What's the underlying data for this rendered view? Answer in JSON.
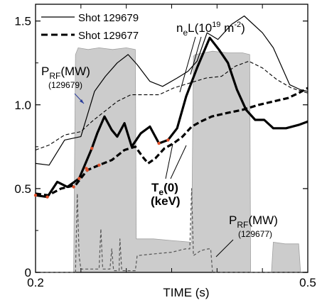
{
  "chart_data": {
    "type": "line",
    "xlabel": "TIME (s)",
    "xlim": [
      0.2,
      0.5
    ],
    "ylim": [
      0,
      1.6
    ],
    "x_ticks": [
      "0.2",
      "0.5"
    ],
    "y_ticks": [
      "0",
      "0.5",
      "1.0",
      "1.5"
    ],
    "legend": {
      "placement": "top-left",
      "entries": [
        "Shot 129679",
        "Shot 129677"
      ]
    },
    "annotations": {
      "ne": {
        "prefix": "n",
        "sub": "e",
        "mid": "L(10",
        "sup1": "19",
        "tail": " m",
        "sup2": "-2",
        "close": ")"
      },
      "prf1": {
        "main": "P",
        "sub": "RF",
        "tail": "(MW)",
        "shot": "(129679)"
      },
      "te": {
        "main": "T",
        "sub": "e",
        "tail": "(0)",
        "unit": "(keV)"
      },
      "prf2": {
        "main": "P",
        "sub": "RF",
        "tail": "(MW)",
        "shot": "(129677)"
      }
    },
    "series": [
      {
        "label": "ne_L_129679",
        "style": "thin-solid",
        "points": [
          [
            0.2,
            0.65
          ],
          [
            0.215,
            0.64
          ],
          [
            0.232,
            0.79
          ],
          [
            0.25,
            0.81
          ],
          [
            0.265,
            1.08
          ],
          [
            0.277,
            1.17
          ],
          [
            0.29,
            1.25
          ],
          [
            0.302,
            1.3
          ],
          [
            0.312,
            1.24
          ],
          [
            0.326,
            1.14
          ],
          [
            0.34,
            1.11
          ],
          [
            0.356,
            1.16
          ],
          [
            0.368,
            1.2
          ],
          [
            0.378,
            1.26
          ],
          [
            0.389,
            1.43
          ],
          [
            0.401,
            1.39
          ],
          [
            0.416,
            1.48
          ],
          [
            0.43,
            1.53
          ],
          [
            0.45,
            1.43
          ],
          [
            0.462,
            1.34
          ],
          [
            0.48,
            1.12
          ],
          [
            0.492,
            1.09
          ],
          [
            0.5,
            1.08
          ]
        ]
      },
      {
        "label": "ne_L_129677",
        "style": "thin-dashed",
        "points": [
          [
            0.2,
            0.73
          ],
          [
            0.215,
            0.76
          ],
          [
            0.232,
            0.82
          ],
          [
            0.25,
            0.84
          ],
          [
            0.262,
            0.9
          ],
          [
            0.276,
            0.96
          ],
          [
            0.29,
            1.02
          ],
          [
            0.305,
            1.06
          ],
          [
            0.32,
            1.06
          ],
          [
            0.336,
            1.06
          ],
          [
            0.352,
            1.1
          ],
          [
            0.37,
            1.13
          ],
          [
            0.388,
            1.16
          ],
          [
            0.405,
            1.17
          ],
          [
            0.42,
            1.23
          ],
          [
            0.435,
            1.26
          ],
          [
            0.45,
            1.22
          ],
          [
            0.466,
            1.15
          ],
          [
            0.482,
            1.1
          ],
          [
            0.5,
            1.07
          ]
        ]
      },
      {
        "label": "Te0_129679",
        "style": "thick-solid",
        "points": [
          [
            0.2,
            0.46
          ],
          [
            0.213,
            0.45
          ],
          [
            0.224,
            0.54
          ],
          [
            0.235,
            0.51
          ],
          [
            0.248,
            0.56
          ],
          [
            0.262,
            0.74
          ],
          [
            0.268,
            0.83
          ],
          [
            0.276,
            0.93
          ],
          [
            0.284,
            0.85
          ],
          [
            0.29,
            0.81
          ],
          [
            0.298,
            0.89
          ],
          [
            0.306,
            0.75
          ],
          [
            0.316,
            0.83
          ],
          [
            0.326,
            0.87
          ],
          [
            0.336,
            0.77
          ],
          [
            0.346,
            0.79
          ],
          [
            0.356,
            0.86
          ],
          [
            0.366,
            1.05
          ],
          [
            0.378,
            1.22
          ],
          [
            0.392,
            1.4
          ],
          [
            0.402,
            1.33
          ],
          [
            0.412,
            1.25
          ],
          [
            0.422,
            1.09
          ],
          [
            0.432,
            0.97
          ],
          [
            0.442,
            0.91
          ],
          [
            0.452,
            0.91
          ],
          [
            0.462,
            0.86
          ],
          [
            0.476,
            0.86
          ],
          [
            0.49,
            0.88
          ],
          [
            0.5,
            0.9
          ]
        ]
      },
      {
        "label": "Te0_129677",
        "style": "thick-dashed",
        "points": [
          [
            0.2,
            0.47
          ],
          [
            0.214,
            0.46
          ],
          [
            0.228,
            0.5
          ],
          [
            0.244,
            0.52
          ],
          [
            0.257,
            0.61
          ],
          [
            0.27,
            0.64
          ],
          [
            0.284,
            0.67
          ],
          [
            0.298,
            0.73
          ],
          [
            0.31,
            0.75
          ],
          [
            0.318,
            0.69
          ],
          [
            0.324,
            0.65
          ],
          [
            0.332,
            0.68
          ],
          [
            0.342,
            0.74
          ],
          [
            0.352,
            0.77
          ],
          [
            0.362,
            0.81
          ],
          [
            0.372,
            0.87
          ],
          [
            0.382,
            0.9
          ],
          [
            0.394,
            0.93
          ],
          [
            0.41,
            0.95
          ],
          [
            0.428,
            0.97
          ],
          [
            0.446,
            1.0
          ],
          [
            0.462,
            1.02
          ],
          [
            0.478,
            1.04
          ],
          [
            0.49,
            1.07
          ],
          [
            0.5,
            1.1
          ]
        ]
      },
      {
        "label": "PRF_129679",
        "style": "gray-fill",
        "points": [
          [
            0.2,
            0
          ],
          [
            0.242,
            0
          ],
          [
            0.244,
            1.3
          ],
          [
            0.247,
            1.34
          ],
          [
            0.258,
            1.33
          ],
          [
            0.27,
            1.34
          ],
          [
            0.285,
            1.33
          ],
          [
            0.3,
            1.34
          ],
          [
            0.31,
            1.33
          ],
          [
            0.311,
            0.2
          ],
          [
            0.33,
            0.2
          ],
          [
            0.35,
            0.19
          ],
          [
            0.372,
            0.18
          ],
          [
            0.374,
            1.29
          ],
          [
            0.376,
            1.3
          ],
          [
            0.395,
            1.32
          ],
          [
            0.412,
            1.31
          ],
          [
            0.428,
            1.31
          ],
          [
            0.436,
            1.3
          ],
          [
            0.437,
            0.0
          ],
          [
            0.46,
            0.0
          ],
          [
            0.462,
            0.18
          ],
          [
            0.475,
            0.17
          ],
          [
            0.49,
            0.17
          ],
          [
            0.492,
            0.0
          ],
          [
            0.5,
            0.0
          ]
        ]
      },
      {
        "label": "PRF_129677",
        "style": "gray-dashed",
        "points": [
          [
            0.2,
            0
          ],
          [
            0.244,
            0
          ],
          [
            0.246,
            0.47
          ],
          [
            0.248,
            0.1
          ],
          [
            0.25,
            0.02
          ],
          [
            0.27,
            0.02
          ],
          [
            0.272,
            0.26
          ],
          [
            0.274,
            0.02
          ],
          [
            0.282,
            0.02
          ],
          [
            0.284,
            0.14
          ],
          [
            0.286,
            0.01
          ],
          [
            0.292,
            0.01
          ],
          [
            0.293,
            0.2
          ],
          [
            0.295,
            0.01
          ],
          [
            0.31,
            0.01
          ],
          [
            0.312,
            0.1
          ],
          [
            0.33,
            0.11
          ],
          [
            0.35,
            0.12
          ],
          [
            0.365,
            0.14
          ],
          [
            0.37,
            0.14
          ],
          [
            0.372,
            0.5
          ],
          [
            0.374,
            0.1
          ],
          [
            0.382,
            0.13
          ],
          [
            0.39,
            0.14
          ],
          [
            0.393,
            0.14
          ],
          [
            0.395,
            0.0
          ],
          [
            0.5,
            0.0
          ]
        ]
      }
    ],
    "te_markers": [
      [
        0.2,
        0.46
      ],
      [
        0.213,
        0.45
      ],
      [
        0.248,
        0.56
      ],
      [
        0.256,
        0.62
      ],
      [
        0.262,
        0.74
      ],
      [
        0.336,
        0.77
      ],
      [
        0.346,
        0.79
      ],
      [
        0.242,
        0.51
      ],
      [
        0.257,
        0.61
      ],
      [
        0.27,
        0.64
      ]
    ]
  }
}
